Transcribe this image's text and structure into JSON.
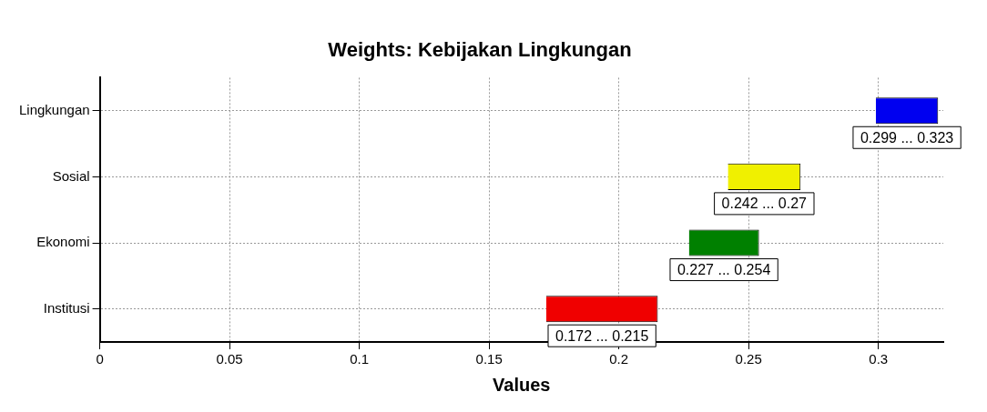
{
  "chart_data": {
    "type": "bar",
    "title": "Weights: Kebijakan Lingkungan",
    "xlabel": "Values",
    "orientation": "horizontal",
    "categories": [
      "Lingkungan",
      "Sosial",
      "Ekonomi",
      "Institusi"
    ],
    "base": [
      0.299,
      0.242,
      0.227,
      0.172
    ],
    "values": [
      0.024,
      0.028,
      0.027,
      0.043
    ],
    "colors": [
      "#0000f0",
      "#f0f000",
      "#008000",
      "#f00000"
    ],
    "annotations": [
      "0.299 ... 0.323",
      "0.242 ... 0.27",
      "0.227 ... 0.254",
      "0.172 ... 0.215"
    ],
    "xlim": [
      0,
      0.325
    ],
    "xticks": [
      0,
      0.05,
      0.1,
      0.15,
      0.2,
      0.25,
      0.3
    ],
    "grid": true,
    "legend": false
  }
}
